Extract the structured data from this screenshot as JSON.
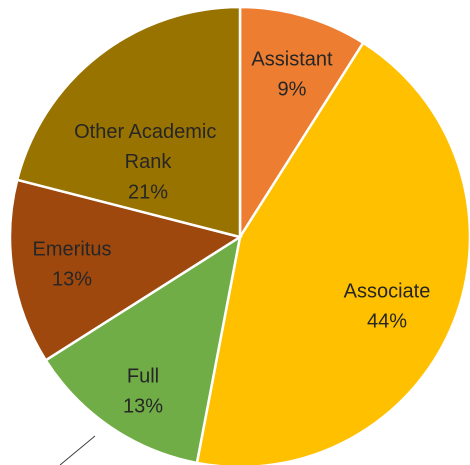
{
  "chart_data": {
    "type": "pie",
    "categories": [
      "Assistant",
      "Associate",
      "Full",
      "Emeritus",
      "Other Academic Rank"
    ],
    "values": [
      9,
      44,
      13,
      13,
      21
    ],
    "value_labels": [
      "9%",
      "44%",
      "13%",
      "13%",
      "21%"
    ],
    "colors": [
      "#ED7D31",
      "#FFC000",
      "#70AD47",
      "#9E480E",
      "#997300"
    ]
  }
}
